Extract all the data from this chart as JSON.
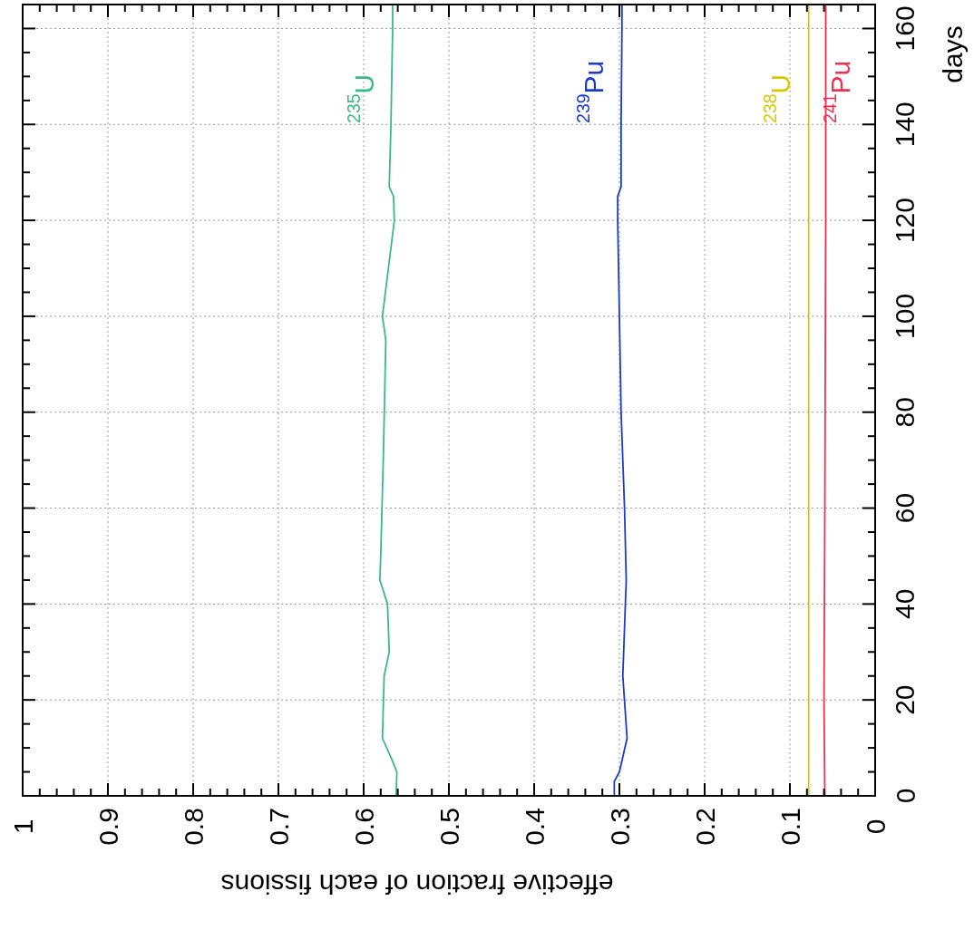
{
  "chart_data": {
    "type": "line",
    "xlabel": "effective fraction of each fissions",
    "ylabel": "days",
    "xlim": [
      1,
      0
    ],
    "ylim": [
      0,
      165
    ],
    "yticks": [
      0,
      {
        "value": 5,
        "label": null
      },
      {
        "value": 10,
        "label": null
      },
      {
        "value": 15,
        "label": null
      },
      20,
      {
        "value": 25,
        "label": null
      },
      {
        "value": 30,
        "label": null
      },
      {
        "value": 35,
        "label": null
      },
      40,
      {
        "value": 45,
        "label": null
      },
      {
        "value": 50,
        "label": null
      },
      {
        "value": 55,
        "label": null
      },
      60,
      {
        "value": 65,
        "label": null
      },
      {
        "value": 70,
        "label": null
      },
      {
        "value": 75,
        "label": null
      },
      80,
      {
        "value": 85,
        "label": null
      },
      {
        "value": 90,
        "label": null
      },
      {
        "value": 95,
        "label": null
      },
      100,
      {
        "value": 105,
        "label": null
      },
      {
        "value": 110,
        "label": null
      },
      {
        "value": 115,
        "label": null
      },
      120,
      {
        "value": 125,
        "label": null
      },
      {
        "value": 130,
        "label": null
      },
      {
        "value": 135,
        "label": null
      },
      140,
      {
        "value": 145,
        "label": null
      },
      {
        "value": 150,
        "label": null
      },
      {
        "value": 155,
        "label": null
      },
      160
    ],
    "xticks": [
      0,
      {
        "value": 0.02,
        "label": null
      },
      {
        "value": 0.04,
        "label": null
      },
      {
        "value": 0.06,
        "label": null
      },
      {
        "value": 0.08,
        "label": null
      },
      0.1,
      {
        "value": 0.12,
        "label": null
      },
      {
        "value": 0.14,
        "label": null
      },
      {
        "value": 0.16,
        "label": null
      },
      {
        "value": 0.18,
        "label": null
      },
      0.2,
      {
        "value": 0.22,
        "label": null
      },
      {
        "value": 0.24,
        "label": null
      },
      {
        "value": 0.26,
        "label": null
      },
      {
        "value": 0.28,
        "label": null
      },
      0.3,
      {
        "value": 0.32,
        "label": null
      },
      {
        "value": 0.34,
        "label": null
      },
      {
        "value": 0.36,
        "label": null
      },
      {
        "value": 0.38,
        "label": null
      },
      0.4,
      {
        "value": 0.42,
        "label": null
      },
      {
        "value": 0.44,
        "label": null
      },
      {
        "value": 0.46,
        "label": null
      },
      {
        "value": 0.48,
        "label": null
      },
      0.5,
      {
        "value": 0.52,
        "label": null
      },
      {
        "value": 0.54,
        "label": null
      },
      {
        "value": 0.56,
        "label": null
      },
      {
        "value": 0.58,
        "label": null
      },
      0.6,
      {
        "value": 0.62,
        "label": null
      },
      {
        "value": 0.64,
        "label": null
      },
      {
        "value": 0.66,
        "label": null
      },
      {
        "value": 0.68,
        "label": null
      },
      0.7,
      {
        "value": 0.72,
        "label": null
      },
      {
        "value": 0.74,
        "label": null
      },
      {
        "value": 0.76,
        "label": null
      },
      {
        "value": 0.78,
        "label": null
      },
      0.8,
      {
        "value": 0.82,
        "label": null
      },
      {
        "value": 0.84,
        "label": null
      },
      {
        "value": 0.86,
        "label": null
      },
      {
        "value": 0.88,
        "label": null
      },
      0.9,
      {
        "value": 0.92,
        "label": null
      },
      {
        "value": 0.94,
        "label": null
      },
      {
        "value": 0.96,
        "label": null
      },
      {
        "value": 0.98,
        "label": null
      },
      1
    ],
    "grid": true,
    "marker": "none",
    "line_style": "solid",
    "series": [
      {
        "name": "$^{235}$U",
        "color": "#3cb88a",
        "values": [
          0,
          5,
          8,
          12,
          25,
          30,
          40,
          45,
          50,
          70,
          95,
          100,
          120,
          125,
          127,
          140,
          160,
          165
        ],
        "x": [
          0.562,
          0.561,
          0.568,
          0.578,
          0.576,
          0.57,
          0.572,
          0.581,
          0.58,
          0.577,
          0.574,
          0.578,
          0.564,
          0.565,
          0.57,
          0.568,
          0.566,
          0.566
        ]
      },
      {
        "name": "$^{239}$Pu",
        "color": "#1a3ccc",
        "values": [
          0,
          3,
          5,
          12,
          25,
          35,
          45,
          60,
          80,
          100,
          120,
          125,
          127,
          140,
          160,
          165
        ],
        "x": [
          0.306,
          0.306,
          0.3,
          0.291,
          0.296,
          0.294,
          0.292,
          0.294,
          0.298,
          0.3,
          0.302,
          0.302,
          0.298,
          0.298,
          0.297,
          0.297
        ]
      },
      {
        "name": "$^{238}$U",
        "color": "#d8c800",
        "values": [
          0,
          165
        ],
        "x": [
          0.078,
          0.078
        ]
      },
      {
        "name": "$^{241}$Pu",
        "color": "#f03050",
        "values": [
          0,
          20,
          60,
          120,
          165
        ],
        "x": [
          0.059,
          0.06,
          0.059,
          0.058,
          0.058
        ]
      }
    ]
  }
}
